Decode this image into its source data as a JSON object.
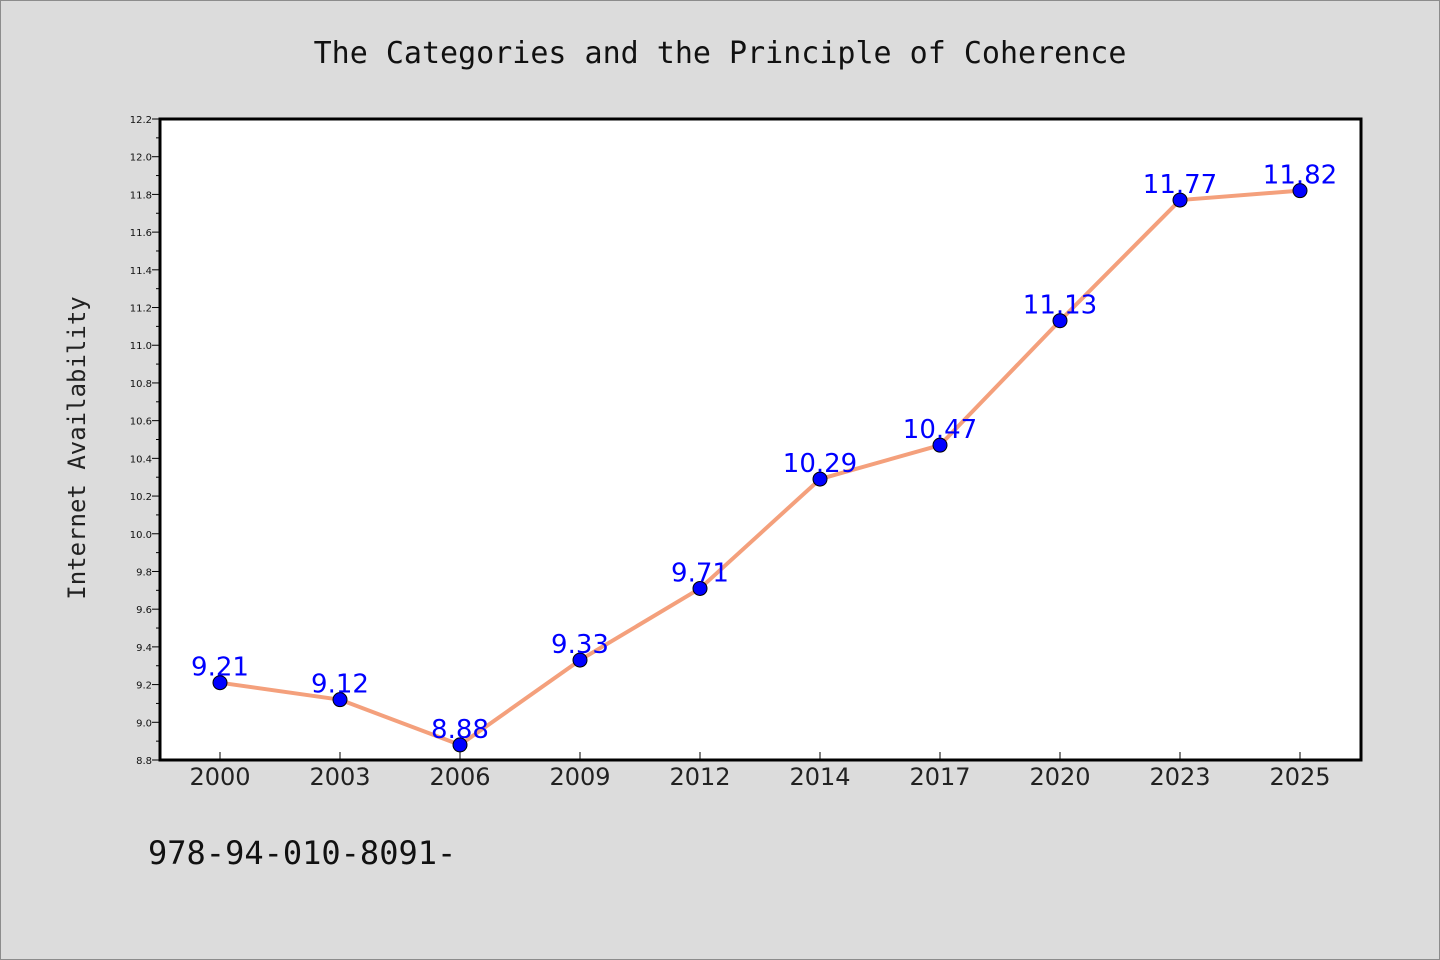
{
  "chart_data": {
    "type": "line",
    "title": "The Categories and the Principle of Coherence",
    "xlabel": "",
    "ylabel": "Internet Availability",
    "categories": [
      "2000",
      "2003",
      "2006",
      "2009",
      "2012",
      "2014",
      "2017",
      "2020",
      "2023",
      "2025"
    ],
    "values": [
      9.21,
      9.12,
      8.88,
      9.33,
      9.71,
      10.29,
      10.47,
      11.13,
      11.77,
      11.82
    ],
    "data_labels": [
      "9.21",
      "9.12",
      "8.88",
      "9.33",
      "9.71",
      "10.29",
      "10.47",
      "11.13",
      "11.77",
      "11.82"
    ],
    "ylim": [
      8.8,
      12.2
    ],
    "yticks": [
      "8.8",
      "9.0",
      "9.2",
      "9.4",
      "9.6",
      "9.8",
      "10.0",
      "10.2",
      "10.4",
      "10.6",
      "10.8",
      "11.0",
      "11.2",
      "11.4",
      "11.6",
      "11.8",
      "12.0",
      "12.2"
    ],
    "grid": false,
    "colors": {
      "line": "#f4a07c",
      "marker": "#0000ff",
      "data_label": "#0000ff",
      "background": "#dcdcdc",
      "plot_background": "#ffffff"
    }
  },
  "footer": {
    "text": "978-94-010-8091-"
  }
}
